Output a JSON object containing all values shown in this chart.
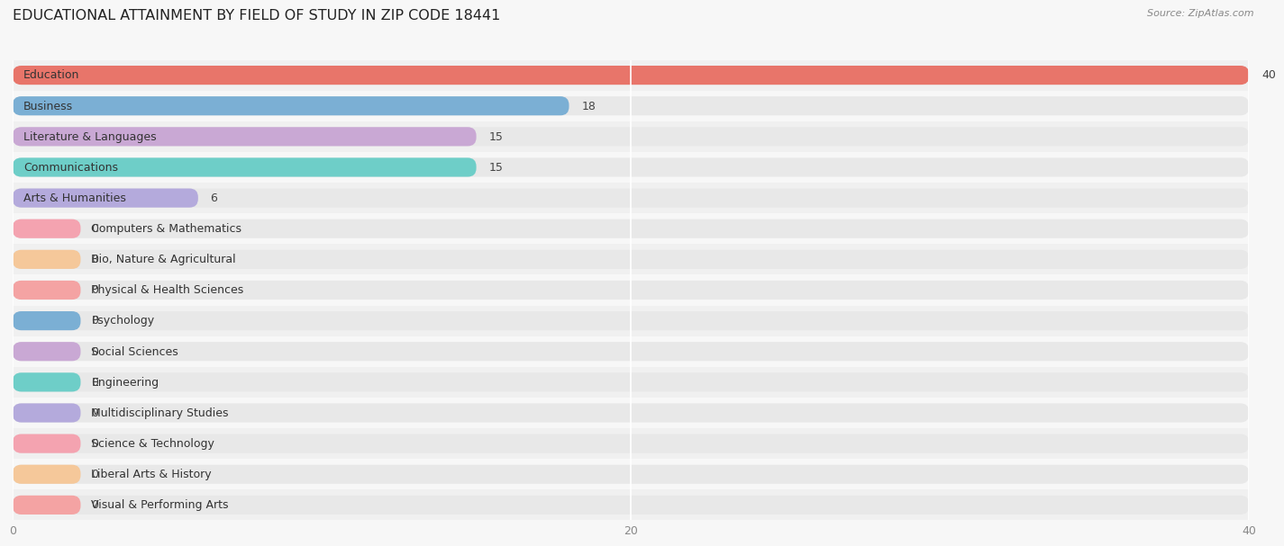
{
  "title": "EDUCATIONAL ATTAINMENT BY FIELD OF STUDY IN ZIP CODE 18441",
  "source": "Source: ZipAtlas.com",
  "categories": [
    "Education",
    "Business",
    "Literature & Languages",
    "Communications",
    "Arts & Humanities",
    "Computers & Mathematics",
    "Bio, Nature & Agricultural",
    "Physical & Health Sciences",
    "Psychology",
    "Social Sciences",
    "Engineering",
    "Multidisciplinary Studies",
    "Science & Technology",
    "Liberal Arts & History",
    "Visual & Performing Arts"
  ],
  "values": [
    40,
    18,
    15,
    15,
    6,
    0,
    0,
    0,
    0,
    0,
    0,
    0,
    0,
    0,
    0
  ],
  "bar_colors": [
    "#E8756A",
    "#7BAFD4",
    "#C9A8D4",
    "#6ECEC8",
    "#B4AADC",
    "#F4A3B0",
    "#F5C89A",
    "#F4A3A3",
    "#7BAFD4",
    "#C9A8D4",
    "#6ECEC8",
    "#B4AADC",
    "#F4A3B0",
    "#F5C89A",
    "#F4A3A3"
  ],
  "xlim": [
    0,
    40
  ],
  "xticks": [
    0,
    20,
    40
  ],
  "background_color": "#f7f7f7",
  "bar_bg_color": "#e8e8e8",
  "row_bg_colors": [
    "#f0f0f0",
    "#f7f7f7"
  ],
  "title_fontsize": 11.5,
  "label_fontsize": 9,
  "value_fontsize": 9,
  "source_fontsize": 8
}
